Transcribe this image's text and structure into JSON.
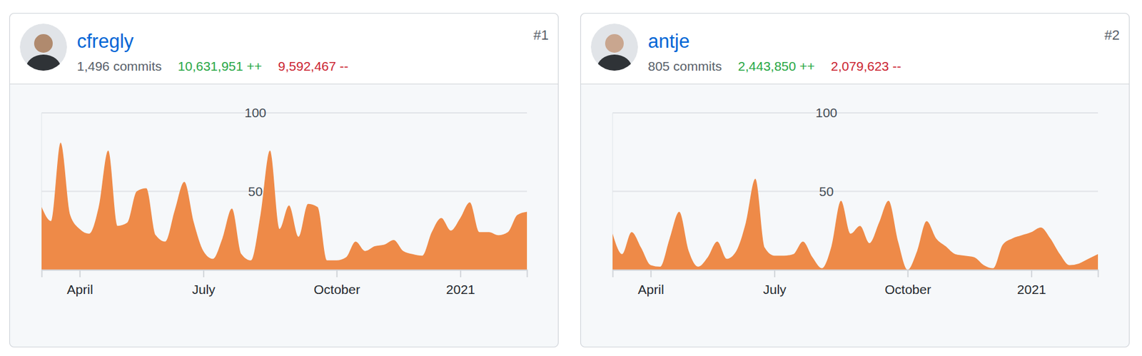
{
  "chart_data": [
    {
      "type": "area",
      "title": "cfregly",
      "annotations": [
        "#1",
        "1,496 commits",
        "10,631,951 ++",
        "9,592,467 --"
      ],
      "categories": [
        null,
        null,
        null,
        null,
        "April",
        null,
        null,
        null,
        null,
        null,
        null,
        null,
        null,
        null,
        null,
        null,
        null,
        "July",
        null,
        null,
        null,
        null,
        null,
        null,
        null,
        null,
        null,
        null,
        null,
        null,
        null,
        "October",
        null,
        null,
        null,
        null,
        null,
        null,
        null,
        null,
        null,
        null,
        null,
        null,
        "2021",
        null,
        null,
        null,
        null,
        null,
        null,
        null
      ],
      "values": [
        40,
        31,
        81,
        35,
        26,
        23,
        40,
        76,
        28,
        30,
        50,
        52,
        22,
        18,
        38,
        56,
        30,
        12,
        7,
        20,
        39,
        10,
        6,
        35,
        76,
        26,
        41,
        21,
        42,
        40,
        6,
        6,
        8,
        18,
        12,
        15,
        16,
        19,
        12,
        10,
        9,
        24,
        33,
        25,
        33,
        43,
        24,
        24,
        22,
        24,
        35,
        37
      ],
      "color": "#ee8a48",
      "ylim": [
        0,
        100
      ],
      "yticks": [
        50,
        100
      ],
      "grid": true
    },
    {
      "type": "area",
      "title": "antje",
      "annotations": [
        "#2",
        "805 commits",
        "2,443,850 ++",
        "2,079,623 --"
      ],
      "categories": [
        null,
        null,
        null,
        null,
        "April",
        null,
        null,
        null,
        null,
        null,
        null,
        null,
        null,
        null,
        null,
        null,
        null,
        "July",
        null,
        null,
        null,
        null,
        null,
        null,
        null,
        null,
        null,
        null,
        null,
        null,
        null,
        "October",
        null,
        null,
        null,
        null,
        null,
        null,
        null,
        null,
        null,
        null,
        null,
        null,
        "2021",
        null,
        null,
        null,
        null,
        null,
        null,
        null
      ],
      "values": [
        23,
        10,
        24,
        14,
        3,
        2,
        20,
        37,
        12,
        2,
        8,
        18,
        7,
        12,
        30,
        58,
        14,
        9,
        9,
        10,
        18,
        8,
        1,
        15,
        44,
        23,
        28,
        17,
        30,
        44,
        18,
        0,
        12,
        31,
        20,
        15,
        10,
        9,
        8,
        3,
        1,
        16,
        20,
        22,
        24,
        27,
        20,
        10,
        3,
        4,
        7,
        10
      ],
      "color": "#ee8a48",
      "ylim": [
        0,
        100
      ],
      "yticks": [
        50,
        100
      ],
      "grid": true
    }
  ]
}
